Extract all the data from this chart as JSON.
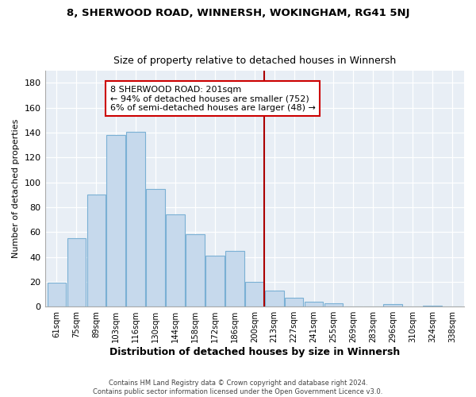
{
  "title1": "8, SHERWOOD ROAD, WINNERSH, WOKINGHAM, RG41 5NJ",
  "title2": "Size of property relative to detached houses in Winnersh",
  "xlabel": "Distribution of detached houses by size in Winnersh",
  "ylabel": "Number of detached properties",
  "footer1": "Contains HM Land Registry data © Crown copyright and database right 2024.",
  "footer2": "Contains public sector information licensed under the Open Government Licence v3.0.",
  "bar_labels": [
    "61sqm",
    "75sqm",
    "89sqm",
    "103sqm",
    "116sqm",
    "130sqm",
    "144sqm",
    "158sqm",
    "172sqm",
    "186sqm",
    "200sqm",
    "213sqm",
    "227sqm",
    "241sqm",
    "255sqm",
    "269sqm",
    "283sqm",
    "296sqm",
    "310sqm",
    "324sqm",
    "338sqm"
  ],
  "bar_heights": [
    19,
    55,
    90,
    138,
    141,
    95,
    74,
    58,
    41,
    45,
    20,
    13,
    7,
    4,
    3,
    0,
    0,
    2,
    0,
    1,
    0
  ],
  "bar_color": "#c6d9ec",
  "bar_edge_color": "#7ab0d4",
  "vline_x": 10.5,
  "vline_color": "#aa0000",
  "annotation_title": "8 SHERWOOD ROAD: 201sqm",
  "annotation_line1": "← 94% of detached houses are smaller (752)",
  "annotation_line2": "6% of semi-detached houses are larger (48) →",
  "annotation_box_edge": "#cc0000",
  "bg_color": "#e8eef5",
  "ylim": [
    0,
    190
  ],
  "yticks": [
    0,
    20,
    40,
    60,
    80,
    100,
    120,
    140,
    160,
    180
  ]
}
